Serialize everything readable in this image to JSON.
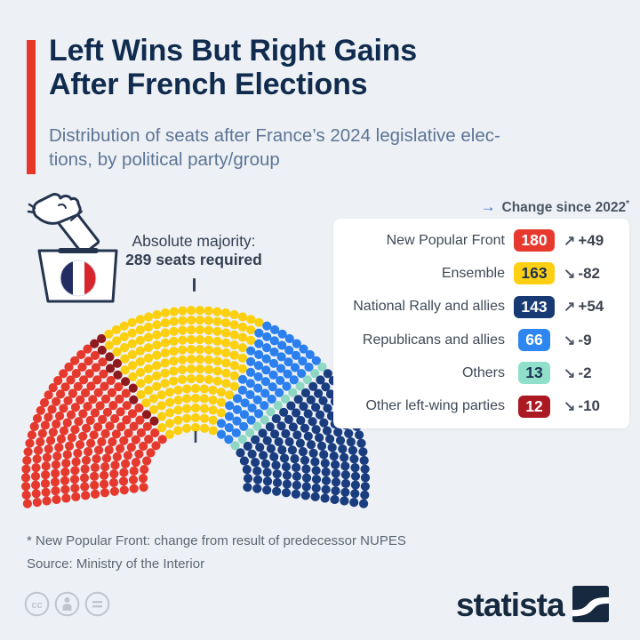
{
  "header": {
    "title_line1": "Left Wins But Right Gains",
    "title_line2": "After French Elections",
    "subtitle_line1": "Distribution of seats after France’s 2024 legislative elec-",
    "subtitle_line2": "tions, by political party/group",
    "accent_color": "#e5382b"
  },
  "annotation": {
    "majority_line1": "Absolute majority:",
    "majority_line2": "289 seats required"
  },
  "legend": {
    "header_arrow": "→",
    "header_label": "Change since 2022",
    "header_asterisk": "*",
    "rows": [
      {
        "label": "New Popular Front",
        "value": "180",
        "badge_style": "background:#e8392f;color:#ffffff",
        "arrow": "↗",
        "change": "+49"
      },
      {
        "label": "Ensemble",
        "value": "163",
        "badge_style": "background:#fdd013;color:#1d2f52",
        "arrow": "↘",
        "change": "-82"
      },
      {
        "label": "National Rally and allies",
        "value": "143",
        "badge_style": "background:#173a75;color:#ffffff",
        "arrow": "↗",
        "change": "+54"
      },
      {
        "label": "Republicans and allies",
        "value": "66",
        "badge_style": "background:#2e86f0;color:#ffffff",
        "arrow": "↘",
        "change": "-9"
      },
      {
        "label": "Others",
        "value": "13",
        "badge_style": "background:#8fdfca;color:#1d2f52",
        "arrow": "↘",
        "change": "-2"
      },
      {
        "label": "Other left-wing parties",
        "value": "12",
        "badge_style": "background:#ab1a22;color:#ffffff",
        "arrow": "↘",
        "change": "-10"
      }
    ]
  },
  "chart_data": {
    "type": "parliament",
    "title": "Distribution of seats after France's 2024 legislative elections, by political party/group",
    "total_seats": 577,
    "majority_seats": 289,
    "seat_order": [
      {
        "name": "New Popular Front",
        "seats": 180,
        "color": "#e6392e",
        "change_since_2022": 49
      },
      {
        "name": "Other left-wing parties",
        "seats": 12,
        "color": "#8e1a1f",
        "change_since_2022": -10
      },
      {
        "name": "Ensemble",
        "seats": 163,
        "color": "#fcd00e",
        "change_since_2022": -82
      },
      {
        "name": "Republicans and allies",
        "seats": 66,
        "color": "#2b80ee",
        "change_since_2022": -9
      },
      {
        "name": "Others",
        "seats": 13,
        "color": "#8ed7c4",
        "change_since_2022": -2
      },
      {
        "name": "National Rally and allies",
        "seats": 143,
        "color": "#1a3d80",
        "change_since_2022": 54
      }
    ],
    "layout": {
      "rows": 13,
      "arc_degrees": 196,
      "legend_position": "right",
      "marker_color": "#33415a"
    }
  },
  "footnotes": {
    "line1": "* New Popular Front: change from result of predecessor NUPES",
    "line2": "Source: Ministry of the Interior"
  },
  "branding": {
    "wordmark": "statista",
    "logo_color": "#16293f"
  },
  "icons": {
    "header_arrow": "right-arrow",
    "trend_up": "up-right-arrow",
    "trend_down": "down-right-arrow",
    "license": [
      "creative-commons",
      "attribution",
      "no-derivatives"
    ]
  }
}
